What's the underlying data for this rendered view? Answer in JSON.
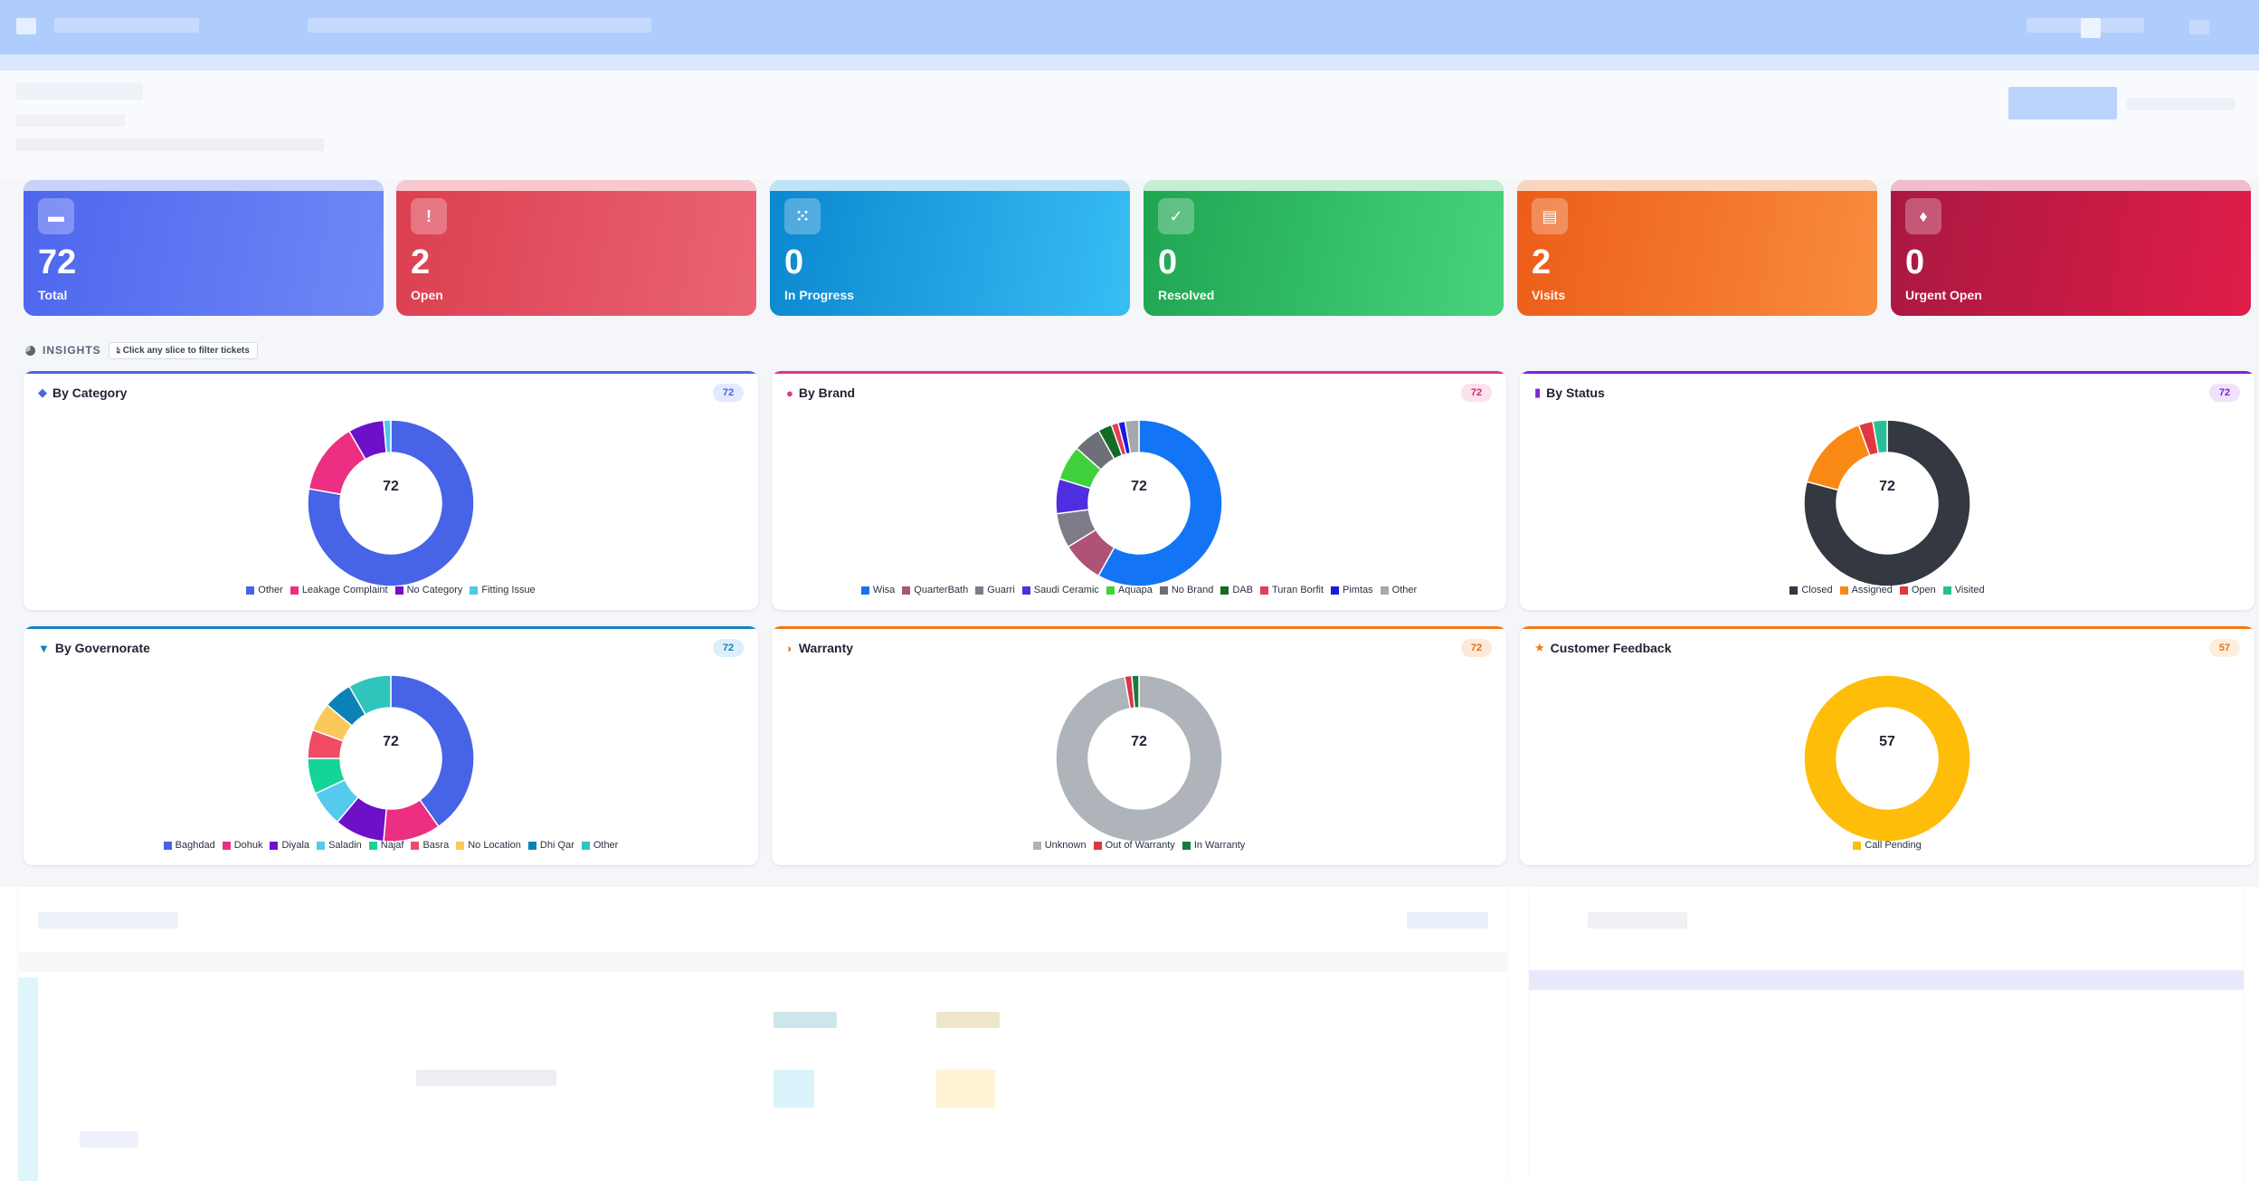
{
  "stats": [
    {
      "value": "72",
      "label": "Total",
      "icon": "ticket-icon",
      "from": "#4d66ee",
      "to": "#6f88f6",
      "cap": "#c8d2fb"
    },
    {
      "value": "2",
      "label": "Open",
      "icon": "alert-icon",
      "from": "#db3f50",
      "to": "#ea6474",
      "cap": "#f7c8cd"
    },
    {
      "value": "0",
      "label": "In Progress",
      "icon": "spinner-icon",
      "from": "#0b87cf",
      "to": "#38bdf4",
      "cap": "#bfe3f6"
    },
    {
      "value": "0",
      "label": "Resolved",
      "icon": "check-icon",
      "from": "#1fa552",
      "to": "#47d47c",
      "cap": "#c4efd3"
    },
    {
      "value": "2",
      "label": "Visits",
      "icon": "car-icon",
      "from": "#ec5d18",
      "to": "#f98c3e",
      "cap": "#fbd5bd"
    },
    {
      "value": "0",
      "label": "Urgent Open",
      "icon": "fire-icon",
      "from": "#a91841",
      "to": "#df1d48",
      "cap": "#f1bccb"
    }
  ],
  "insights": {
    "label": "INSIGHTS",
    "hint": "Click any slice to filter tickets"
  },
  "charts": [
    {
      "title": "By Category",
      "icon": "tag-icon",
      "accent": "#4a63e8",
      "badge": "72",
      "badge_bg": "#e4e9fd",
      "badge_fg": "#4a63e8",
      "center": "72",
      "chart_data": {
        "type": "pie",
        "labels": [
          "Other",
          "Leakage Complaint",
          "No Category",
          "Fitting Issue"
        ],
        "values": [
          56,
          10,
          5,
          1
        ],
        "colors": [
          "#4763e6",
          "#ec2f82",
          "#6d10c8",
          "#4fc7ef"
        ]
      }
    },
    {
      "title": "By Brand",
      "icon": "brand-icon",
      "accent": "#e2338b",
      "badge": "72",
      "badge_bg": "#fde1ee",
      "badge_fg": "#d0287e",
      "center": "72",
      "chart_data": {
        "type": "pie",
        "labels": [
          "Wisa",
          "QuarterBath",
          "Guarri",
          "Saudi Ceramic",
          "Aquapa",
          "No Brand",
          "DAB",
          "Turan Borfit",
          "Pimtas",
          "Other"
        ],
        "values": [
          43,
          6,
          5,
          5,
          5,
          4,
          2,
          1,
          1,
          2
        ],
        "colors": [
          "#1374f5",
          "#ae5278",
          "#7e7b89",
          "#4e2ee0",
          "#3fd23c",
          "#6d7077",
          "#136c26",
          "#e83b56",
          "#1a1adf",
          "#a5a8ae"
        ]
      }
    },
    {
      "title": "By Status",
      "icon": "clipboard-icon",
      "accent": "#7b23d6",
      "badge": "72",
      "badge_bg": "#efe2fc",
      "badge_fg": "#7b23d6",
      "center": "72",
      "chart_data": {
        "type": "pie",
        "labels": [
          "Closed",
          "Assigned",
          "Open",
          "Visited"
        ],
        "values": [
          57,
          11,
          2,
          2
        ],
        "colors": [
          "#333841",
          "#f98914",
          "#e33640",
          "#27c096"
        ]
      }
    },
    {
      "title": "By Governorate",
      "icon": "pin-icon",
      "accent": "#1382bf",
      "badge": "72",
      "badge_bg": "#ddeffa",
      "badge_fg": "#1382bf",
      "center": "72",
      "chart_data": {
        "type": "pie",
        "labels": [
          "Baghdad",
          "Dohuk",
          "Diyala",
          "Saladin",
          "Najaf",
          "Basra",
          "No Location",
          "Dhi Qar",
          "Other"
        ],
        "values": [
          29,
          8,
          7,
          5,
          5,
          4,
          4,
          4,
          6
        ],
        "colors": [
          "#4763e6",
          "#ec2f82",
          "#6d10c8",
          "#56c9ef",
          "#14d497",
          "#ef4b65",
          "#fdc85a",
          "#0b82b7",
          "#2fc5bd"
        ]
      }
    },
    {
      "title": "Warranty",
      "icon": "shield-icon",
      "accent": "#f07a17",
      "badge": "72",
      "badge_bg": "#fde9da",
      "badge_fg": "#e06b12",
      "center": "72",
      "chart_data": {
        "type": "pie",
        "labels": [
          "Unknown",
          "Out of Warranty",
          "In Warranty"
        ],
        "values": [
          70,
          1,
          1
        ],
        "colors": [
          "#afb4ba",
          "#dd3545",
          "#177d3a"
        ]
      }
    },
    {
      "title": "Customer Feedback",
      "icon": "star-icon",
      "accent": "#f07a17",
      "badge": "57",
      "badge_bg": "#fdeedd",
      "badge_fg": "#d8781c",
      "center": "57",
      "chart_data": {
        "type": "pie",
        "labels": [
          "Call Pending"
        ],
        "values": [
          57
        ],
        "colors": [
          "#fdbd08"
        ]
      }
    }
  ]
}
